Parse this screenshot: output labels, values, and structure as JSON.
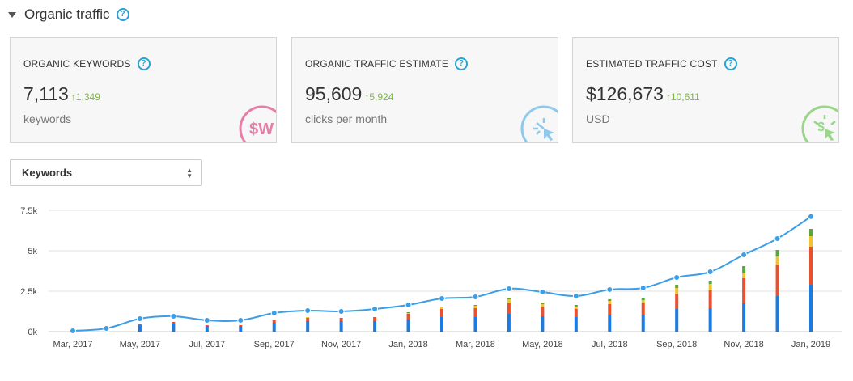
{
  "header": {
    "title": "Organic traffic"
  },
  "cards": [
    {
      "title": "ORGANIC KEYWORDS",
      "value": "7,113",
      "delta": "1,349",
      "sub": "keywords",
      "emblem": "dollar-w-icon",
      "emblem_color": "#e57fa8"
    },
    {
      "title": "ORGANIC TRAFFIC ESTIMATE",
      "value": "95,609",
      "delta": "5,924",
      "sub": "clicks per month",
      "emblem": "click-cursor-icon",
      "emblem_color": "#8ec9ec"
    },
    {
      "title": "ESTIMATED TRAFFIC COST",
      "value": "$126,673",
      "delta": "10,611",
      "sub": "USD",
      "emblem": "dollar-cursor-icon",
      "emblem_color": "#98d689"
    }
  ],
  "select": {
    "value": "Keywords"
  },
  "colors": {
    "accent": "#29a3d6",
    "positive": "#7cb342",
    "line": "#3b9ee6",
    "blue": "#1b7be0",
    "red": "#e8502f",
    "yellow": "#f2c230",
    "green": "#57a83a"
  },
  "chart_data": {
    "type": "line",
    "ylim": [
      0,
      7500
    ],
    "yticks": [
      "0k",
      "2.5k",
      "5k",
      "7.5k"
    ],
    "ytick_values": [
      0,
      2500,
      5000,
      7500
    ],
    "xtick_labels": [
      "Mar, 2017",
      "May, 2017",
      "Jul, 2017",
      "Sep, 2017",
      "Nov, 2017",
      "Jan, 2018",
      "Mar, 2018",
      "May, 2018",
      "Jul, 2018",
      "Sep, 2018",
      "Nov, 2018",
      "Jan, 2019"
    ],
    "x": [
      "Mar 2017",
      "Apr 2017",
      "May 2017",
      "Jun 2017",
      "Jul 2017",
      "Aug 2017",
      "Sep 2017",
      "Oct 2017",
      "Nov 2017",
      "Dec 2017",
      "Jan 2018",
      "Feb 2018",
      "Mar 2018",
      "Apr 2018",
      "May 2018",
      "Jun 2018",
      "Jul 2018",
      "Aug 2018",
      "Sep 2018",
      "Oct 2018",
      "Nov 2018",
      "Dec 2018",
      "Jan 2019"
    ],
    "line_values": [
      50,
      200,
      800,
      950,
      700,
      700,
      1150,
      1300,
      1250,
      1400,
      1650,
      2050,
      2150,
      2650,
      2450,
      2200,
      2600,
      2700,
      3350,
      3700,
      4750,
      5750,
      7113
    ],
    "stacks": [
      {
        "name": "blue",
        "values": [
          0,
          0,
          400,
          500,
          350,
          350,
          550,
          650,
          650,
          650,
          750,
          900,
          900,
          1100,
          950,
          900,
          1050,
          1050,
          1400,
          1450,
          1750,
          2200,
          2900
        ]
      },
      {
        "name": "red",
        "values": [
          0,
          0,
          50,
          100,
          50,
          50,
          150,
          200,
          200,
          250,
          350,
          500,
          550,
          650,
          550,
          500,
          650,
          700,
          950,
          1100,
          1550,
          1950,
          2350
        ]
      },
      {
        "name": "yellow",
        "values": [
          0,
          0,
          0,
          0,
          0,
          0,
          0,
          50,
          0,
          0,
          50,
          100,
          150,
          250,
          200,
          150,
          200,
          200,
          350,
          400,
          350,
          500,
          650
        ]
      },
      {
        "name": "green",
        "values": [
          0,
          0,
          0,
          0,
          0,
          0,
          0,
          0,
          0,
          0,
          50,
          50,
          50,
          100,
          100,
          100,
          100,
          150,
          200,
          200,
          400,
          400,
          450
        ]
      }
    ]
  }
}
